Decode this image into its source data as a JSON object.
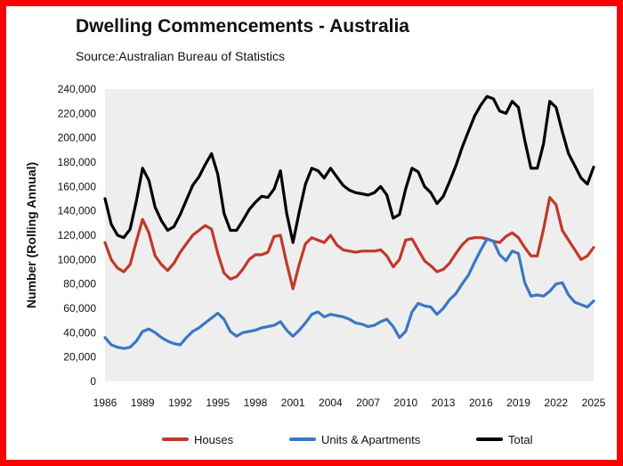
{
  "title": "Dwelling Commencements - Australia",
  "source": "Source:Australian Bureau of Statistics",
  "colors": {
    "border": "#ff0000",
    "plot_bg": "#eeeeee",
    "houses": "#c0392b",
    "units": "#3a78c2",
    "total": "#000000"
  },
  "chart_data": {
    "type": "line",
    "title": "Dwelling Commencements - Australia",
    "subtitle": "Source:Australian Bureau of Statistics",
    "xlabel": "",
    "ylabel": "Number (Rolling Annual)",
    "ylim": [
      0,
      240000
    ],
    "xlim": [
      1986,
      2025
    ],
    "y_ticks": [
      "0",
      "20,000",
      "40,000",
      "60,000",
      "80,000",
      "100,000",
      "120,000",
      "140,000",
      "160,000",
      "180,000",
      "200,000",
      "220,000",
      "240,000"
    ],
    "x_ticks": [
      "1986",
      "1989",
      "1992",
      "1995",
      "1998",
      "2001",
      "2004",
      "2007",
      "2010",
      "2013",
      "2016",
      "2019",
      "2022",
      "2025"
    ],
    "grid": false,
    "legend": "bottom",
    "series": [
      {
        "name": "Houses",
        "color": "#c0392b",
        "x": [
          1986.0,
          1986.5,
          1987.0,
          1987.5,
          1988.0,
          1988.5,
          1989.0,
          1989.5,
          1990.0,
          1990.5,
          1991.0,
          1991.5,
          1992.0,
          1992.5,
          1993.0,
          1993.5,
          1994.0,
          1994.5,
          1995.0,
          1995.5,
          1996.0,
          1996.5,
          1997.0,
          1997.5,
          1998.0,
          1998.5,
          1999.0,
          1999.5,
          2000.0,
          2000.5,
          2001.0,
          2001.5,
          2002.0,
          2002.5,
          2003.0,
          2003.5,
          2004.0,
          2004.5,
          2005.0,
          2005.5,
          2006.0,
          2006.5,
          2007.0,
          2007.5,
          2008.0,
          2008.5,
          2009.0,
          2009.5,
          2010.0,
          2010.5,
          2011.0,
          2011.5,
          2012.0,
          2012.5,
          2013.0,
          2013.5,
          2014.0,
          2014.5,
          2015.0,
          2015.5,
          2016.0,
          2016.5,
          2017.0,
          2017.5,
          2018.0,
          2018.5,
          2019.0,
          2019.5,
          2020.0,
          2020.5,
          2021.0,
          2021.5,
          2022.0,
          2022.5,
          2023.0,
          2023.5,
          2024.0,
          2024.5,
          2025.0
        ],
        "y": [
          114000,
          100000,
          93000,
          90000,
          96000,
          115000,
          133000,
          122000,
          103000,
          96000,
          91000,
          97000,
          106000,
          113000,
          120000,
          124000,
          128000,
          125000,
          105000,
          89000,
          84000,
          86000,
          92000,
          100000,
          104000,
          104000,
          106000,
          119000,
          120000,
          97000,
          76000,
          96000,
          113000,
          118000,
          116000,
          114000,
          120000,
          112000,
          108000,
          107000,
          106000,
          107000,
          107000,
          107000,
          108000,
          103000,
          94000,
          100000,
          116000,
          117000,
          108000,
          99000,
          95000,
          90000,
          92000,
          97000,
          105000,
          112000,
          117000,
          118000,
          118000,
          117000,
          115000,
          114000,
          119000,
          122000,
          118000,
          110000,
          103000,
          103000,
          125000,
          151000,
          145000,
          124000,
          116000,
          108000,
          100000,
          103000,
          110000
        ]
      },
      {
        "name": "Units & Apartments",
        "color": "#3a78c2",
        "x": [
          1986.0,
          1986.5,
          1987.0,
          1987.5,
          1988.0,
          1988.5,
          1989.0,
          1989.5,
          1990.0,
          1990.5,
          1991.0,
          1991.5,
          1992.0,
          1992.5,
          1993.0,
          1993.5,
          1994.0,
          1994.5,
          1995.0,
          1995.5,
          1996.0,
          1996.5,
          1997.0,
          1997.5,
          1998.0,
          1998.5,
          1999.0,
          1999.5,
          2000.0,
          2000.5,
          2001.0,
          2001.5,
          2002.0,
          2002.5,
          2003.0,
          2003.5,
          2004.0,
          2004.5,
          2005.0,
          2005.5,
          2006.0,
          2006.5,
          2007.0,
          2007.5,
          2008.0,
          2008.5,
          2009.0,
          2009.5,
          2010.0,
          2010.5,
          2011.0,
          2011.5,
          2012.0,
          2012.5,
          2013.0,
          2013.5,
          2014.0,
          2014.5,
          2015.0,
          2015.5,
          2016.0,
          2016.5,
          2017.0,
          2017.5,
          2018.0,
          2018.5,
          2019.0,
          2019.5,
          2020.0,
          2020.5,
          2021.0,
          2021.5,
          2022.0,
          2022.5,
          2023.0,
          2023.5,
          2024.0,
          2024.5,
          2025.0
        ],
        "y": [
          36000,
          30000,
          28000,
          27000,
          28000,
          33000,
          41000,
          43000,
          40000,
          36000,
          33000,
          31000,
          30000,
          36000,
          41000,
          44000,
          48000,
          52000,
          56000,
          51000,
          41000,
          37000,
          40000,
          41000,
          42000,
          44000,
          45000,
          46000,
          49000,
          42000,
          37000,
          42000,
          48000,
          55000,
          57000,
          53000,
          55000,
          54000,
          53000,
          51000,
          48000,
          47000,
          45000,
          46000,
          49000,
          51000,
          45000,
          36000,
          41000,
          57000,
          64000,
          62000,
          61000,
          55000,
          60000,
          67000,
          72000,
          80000,
          87000,
          98000,
          108000,
          117000,
          115000,
          104000,
          99000,
          107000,
          105000,
          81000,
          70000,
          71000,
          70000,
          74000,
          80000,
          81000,
          71000,
          65000,
          63000,
          61000,
          66000
        ]
      },
      {
        "name": "Total",
        "color": "#000000",
        "x": [
          1986.0,
          1986.5,
          1987.0,
          1987.5,
          1988.0,
          1988.5,
          1989.0,
          1989.5,
          1990.0,
          1990.5,
          1991.0,
          1991.5,
          1992.0,
          1992.5,
          1993.0,
          1993.5,
          1994.0,
          1994.5,
          1995.0,
          1995.5,
          1996.0,
          1996.5,
          1997.0,
          1997.5,
          1998.0,
          1998.5,
          1999.0,
          1999.5,
          2000.0,
          2000.5,
          2001.0,
          2001.5,
          2002.0,
          2002.5,
          2003.0,
          2003.5,
          2004.0,
          2004.5,
          2005.0,
          2005.5,
          2006.0,
          2006.5,
          2007.0,
          2007.5,
          2008.0,
          2008.5,
          2009.0,
          2009.5,
          2010.0,
          2010.5,
          2011.0,
          2011.5,
          2012.0,
          2012.5,
          2013.0,
          2013.5,
          2014.0,
          2014.5,
          2015.0,
          2015.5,
          2016.0,
          2016.5,
          2017.0,
          2017.5,
          2018.0,
          2018.5,
          2019.0,
          2019.5,
          2020.0,
          2020.5,
          2021.0,
          2021.5,
          2022.0,
          2022.5,
          2023.0,
          2023.5,
          2024.0,
          2024.5,
          2025.0
        ],
        "y": [
          150000,
          129000,
          120000,
          118000,
          125000,
          148000,
          175000,
          165000,
          143000,
          132000,
          124000,
          127000,
          137000,
          149000,
          161000,
          168000,
          178000,
          187000,
          170000,
          138000,
          124000,
          124000,
          132000,
          141000,
          147000,
          152000,
          151000,
          158000,
          173000,
          138000,
          114000,
          139000,
          162000,
          175000,
          173000,
          167000,
          175000,
          168000,
          161000,
          157000,
          155000,
          154000,
          153000,
          155000,
          160000,
          153000,
          134000,
          137000,
          158000,
          175000,
          172000,
          160000,
          155000,
          146000,
          152000,
          164000,
          177000,
          192000,
          205000,
          218000,
          227000,
          234000,
          232000,
          222000,
          220000,
          230000,
          225000,
          198000,
          175000,
          175000,
          195000,
          230000,
          225000,
          205000,
          187000,
          177000,
          167000,
          162000,
          176000
        ]
      }
    ]
  }
}
